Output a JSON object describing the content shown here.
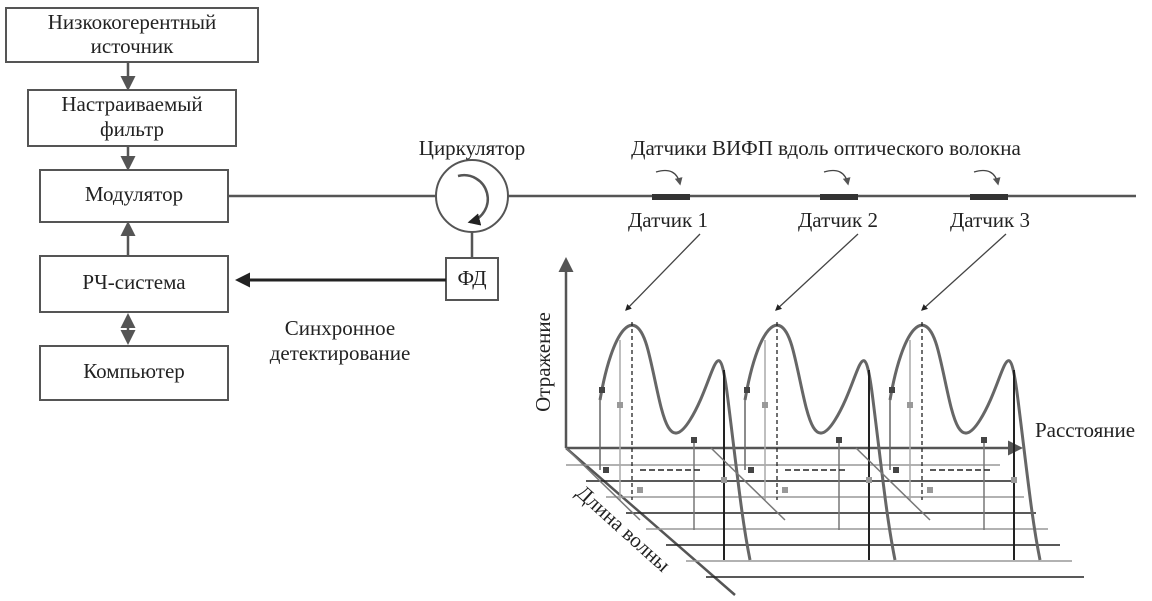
{
  "blocks": [
    {
      "lines": [
        "Низкокогерентный",
        "источник"
      ]
    },
    {
      "lines": [
        "Настраиваемый",
        "фильтр"
      ]
    },
    {
      "lines": [
        "Модулятор"
      ]
    },
    {
      "lines": [
        "РЧ-система"
      ]
    },
    {
      "lines": [
        "Компьютер"
      ]
    }
  ],
  "circulator": "Циркулятор",
  "photodetector": "ФД",
  "sync_detection": [
    "Синхронное",
    "детектирование"
  ],
  "sensors_title": "Датчики ВИФП вдоль оптического волокна",
  "sensors": [
    "Датчик 1",
    "Датчик 2",
    "Датчик 3"
  ],
  "axes": {
    "reflection": "Отражение",
    "distance": "Расстояние",
    "wavelength": "Длина волны"
  }
}
